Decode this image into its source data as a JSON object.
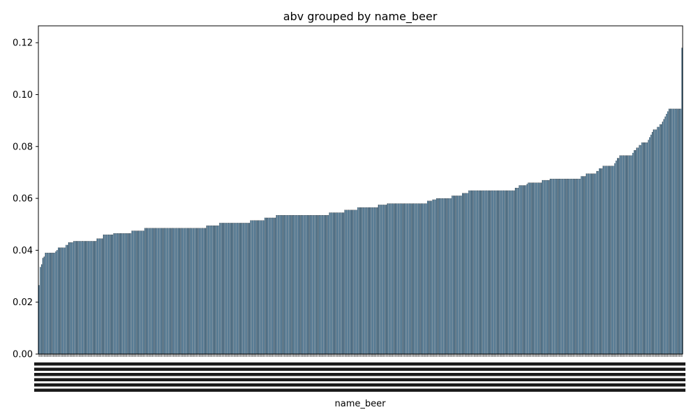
{
  "chart_data": {
    "type": "bar",
    "title": "abv grouped by name_beer",
    "xlabel": "name_beer",
    "ylabel": "",
    "ylim": [
      0,
      0.1265
    ],
    "yticks": [
      0.0,
      0.02,
      0.04,
      0.06,
      0.08,
      0.1,
      0.12
    ],
    "ytick_labels": [
      "0.00",
      "0.02",
      "0.04",
      "0.06",
      "0.08",
      "0.10",
      "0.12"
    ],
    "x_tick_labels": "illegible (overlapping beer names)",
    "grid": false,
    "legend": "none",
    "colors": {
      "bar_fill": "#1f77b4",
      "bar_edge": "#000000",
      "axis": "#000000"
    },
    "series": [
      {
        "values": [
          0.0265,
          0.0335,
          0.0345,
          0.037,
          0.0375,
          0.039,
          0.039,
          0.039,
          0.039,
          0.039,
          0.039,
          0.039,
          0.039,
          0.0395,
          0.04,
          0.041,
          0.041,
          0.041,
          0.041,
          0.041,
          0.041,
          0.042,
          0.042,
          0.043,
          0.043,
          0.043,
          0.043,
          0.0435,
          0.0435,
          0.0435,
          0.0435,
          0.0435,
          0.0435,
          0.0435,
          0.0435,
          0.0435,
          0.0435,
          0.0435,
          0.0435,
          0.0435,
          0.0435,
          0.0435,
          0.0435,
          0.0435,
          0.0435,
          0.0445,
          0.0445,
          0.0445,
          0.0445,
          0.0445,
          0.046,
          0.046,
          0.046,
          0.046,
          0.046,
          0.046,
          0.046,
          0.046,
          0.0465,
          0.0465,
          0.0465,
          0.0465,
          0.0465,
          0.0465,
          0.0465,
          0.0465,
          0.0465,
          0.0465,
          0.0465,
          0.0465,
          0.0465,
          0.0465,
          0.0475,
          0.0475,
          0.0475,
          0.0475,
          0.0475,
          0.0475,
          0.0475,
          0.0475,
          0.0475,
          0.0475,
          0.0485,
          0.0485,
          0.0485,
          0.0485,
          0.0485,
          0.0485,
          0.0485,
          0.0485,
          0.0485,
          0.0485,
          0.0485,
          0.0485,
          0.0485,
          0.0485,
          0.0485,
          0.0485,
          0.0485,
          0.0485,
          0.0485,
          0.0485,
          0.0485,
          0.0485,
          0.0485,
          0.0485,
          0.0485,
          0.0485,
          0.0485,
          0.0485,
          0.0485,
          0.0485,
          0.0485,
          0.0485,
          0.0485,
          0.0485,
          0.0485,
          0.0485,
          0.0485,
          0.0485,
          0.0485,
          0.0485,
          0.0485,
          0.0485,
          0.0485,
          0.0485,
          0.0485,
          0.0485,
          0.0485,
          0.0485,
          0.0495,
          0.0495,
          0.0495,
          0.0495,
          0.0495,
          0.0495,
          0.0495,
          0.0495,
          0.0495,
          0.0495,
          0.0505,
          0.0505,
          0.0505,
          0.0505,
          0.0505,
          0.0505,
          0.0505,
          0.0505,
          0.0505,
          0.0505,
          0.0505,
          0.0505,
          0.0505,
          0.0505,
          0.0505,
          0.0505,
          0.0505,
          0.0505,
          0.0505,
          0.0505,
          0.0505,
          0.0505,
          0.0505,
          0.0505,
          0.0515,
          0.0515,
          0.0515,
          0.0515,
          0.0515,
          0.0515,
          0.0515,
          0.0515,
          0.0515,
          0.0515,
          0.0515,
          0.0525,
          0.0525,
          0.0525,
          0.0525,
          0.0525,
          0.0525,
          0.0525,
          0.0525,
          0.0525,
          0.0535,
          0.0535,
          0.0535,
          0.0535,
          0.0535,
          0.0535,
          0.0535,
          0.0535,
          0.0535,
          0.0535,
          0.0535,
          0.0535,
          0.0535,
          0.0535,
          0.0535,
          0.0535,
          0.0535,
          0.0535,
          0.0535,
          0.0535,
          0.0535,
          0.0535,
          0.0535,
          0.0535,
          0.0535,
          0.0535,
          0.0535,
          0.0535,
          0.0535,
          0.0535,
          0.0535,
          0.0535,
          0.0535,
          0.0535,
          0.0535,
          0.0535,
          0.0535,
          0.0535,
          0.0535,
          0.0535,
          0.0535,
          0.0545,
          0.0545,
          0.0545,
          0.0545,
          0.0545,
          0.0545,
          0.0545,
          0.0545,
          0.0545,
          0.0545,
          0.0545,
          0.0545,
          0.0555,
          0.0555,
          0.0555,
          0.0555,
          0.0555,
          0.0555,
          0.0555,
          0.0555,
          0.0555,
          0.0555,
          0.0565,
          0.0565,
          0.0565,
          0.0565,
          0.0565,
          0.0565,
          0.0565,
          0.0565,
          0.0565,
          0.0565,
          0.0565,
          0.0565,
          0.0565,
          0.0565,
          0.0565,
          0.0565,
          0.0575,
          0.0575,
          0.0575,
          0.0575,
          0.0575,
          0.0575,
          0.0575,
          0.058,
          0.058,
          0.058,
          0.058,
          0.058,
          0.058,
          0.058,
          0.058,
          0.058,
          0.058,
          0.058,
          0.058,
          0.058,
          0.058,
          0.058,
          0.058,
          0.058,
          0.058,
          0.058,
          0.058,
          0.058,
          0.058,
          0.058,
          0.058,
          0.058,
          0.058,
          0.058,
          0.058,
          0.058,
          0.058,
          0.058,
          0.059,
          0.059,
          0.059,
          0.059,
          0.0595,
          0.0595,
          0.0595,
          0.06,
          0.06,
          0.06,
          0.06,
          0.06,
          0.06,
          0.06,
          0.06,
          0.06,
          0.06,
          0.06,
          0.06,
          0.061,
          0.061,
          0.061,
          0.061,
          0.061,
          0.061,
          0.061,
          0.061,
          0.062,
          0.062,
          0.062,
          0.062,
          0.062,
          0.063,
          0.063,
          0.063,
          0.063,
          0.063,
          0.063,
          0.063,
          0.063,
          0.063,
          0.063,
          0.063,
          0.063,
          0.063,
          0.063,
          0.063,
          0.063,
          0.063,
          0.063,
          0.063,
          0.063,
          0.063,
          0.063,
          0.063,
          0.063,
          0.063,
          0.063,
          0.063,
          0.063,
          0.063,
          0.063,
          0.063,
          0.063,
          0.063,
          0.063,
          0.063,
          0.063,
          0.064,
          0.064,
          0.064,
          0.065,
          0.065,
          0.065,
          0.065,
          0.065,
          0.065,
          0.0655,
          0.066,
          0.066,
          0.066,
          0.066,
          0.066,
          0.066,
          0.066,
          0.066,
          0.066,
          0.066,
          0.066,
          0.067,
          0.067,
          0.067,
          0.067,
          0.067,
          0.067,
          0.0675,
          0.0675,
          0.0675,
          0.0675,
          0.0675,
          0.0675,
          0.0675,
          0.0675,
          0.0675,
          0.0675,
          0.0675,
          0.0675,
          0.0675,
          0.0675,
          0.0675,
          0.0675,
          0.0675,
          0.0675,
          0.0675,
          0.0675,
          0.0675,
          0.0675,
          0.0675,
          0.0675,
          0.0685,
          0.0685,
          0.0685,
          0.0685,
          0.0695,
          0.0695,
          0.0695,
          0.0695,
          0.0695,
          0.0695,
          0.0695,
          0.0695,
          0.0705,
          0.0705,
          0.0715,
          0.0715,
          0.0715,
          0.0725,
          0.0725,
          0.0725,
          0.0725,
          0.0725,
          0.0725,
          0.0725,
          0.0725,
          0.0725,
          0.0735,
          0.0745,
          0.0755,
          0.0755,
          0.0765,
          0.0765,
          0.0765,
          0.0765,
          0.0765,
          0.0765,
          0.0765,
          0.0765,
          0.0765,
          0.0765,
          0.0775,
          0.0785,
          0.0785,
          0.0795,
          0.0795,
          0.0805,
          0.0805,
          0.0815,
          0.0815,
          0.0815,
          0.0815,
          0.0815,
          0.0825,
          0.0835,
          0.0845,
          0.0855,
          0.0865,
          0.0865,
          0.0865,
          0.0875,
          0.0875,
          0.0885,
          0.0885,
          0.0895,
          0.0905,
          0.0915,
          0.0925,
          0.0935,
          0.0945,
          0.0945,
          0.0945,
          0.0945,
          0.0945,
          0.0945,
          0.0945,
          0.0945,
          0.0945,
          0.0945,
          0.118
        ]
      }
    ]
  }
}
